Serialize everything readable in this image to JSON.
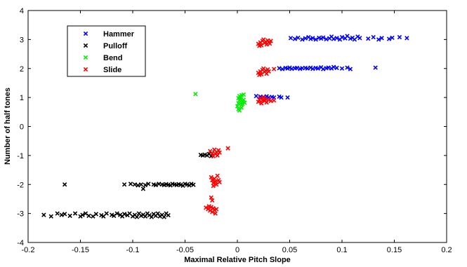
{
  "chart_data": {
    "type": "scatter",
    "title": "",
    "xlabel": "Maximal Relative Pitch Slope",
    "ylabel": "Number of half tones",
    "xlim": [
      -0.2,
      0.2
    ],
    "ylim": [
      -4,
      4
    ],
    "x_ticks": [
      "-0.2",
      "-0.15",
      "-0.1",
      "-0.05",
      "0",
      "0.05",
      "0.1",
      "0.15",
      "0.2"
    ],
    "y_ticks": [
      "4",
      "3",
      "2",
      "1",
      "0",
      "-1",
      "-2",
      "-3",
      "-4"
    ],
    "grid": false,
    "legend_placement": "top-left",
    "marker": "x",
    "series": [
      {
        "name": "Hammer",
        "color": "#0000ff",
        "points": [
          [
            0.051,
            3.05
          ],
          [
            0.055,
            3.02
          ],
          [
            0.058,
            3.06
          ],
          [
            0.062,
            3.0
          ],
          [
            0.065,
            3.04
          ],
          [
            0.068,
            3.08
          ],
          [
            0.07,
            3.02
          ],
          [
            0.072,
            3.05
          ],
          [
            0.075,
            3.0
          ],
          [
            0.078,
            3.06
          ],
          [
            0.08,
            3.03
          ],
          [
            0.082,
            3.07
          ],
          [
            0.085,
            3.01
          ],
          [
            0.088,
            3.04
          ],
          [
            0.09,
            3.1
          ],
          [
            0.092,
            3.02
          ],
          [
            0.095,
            3.05
          ],
          [
            0.098,
            3.0
          ],
          [
            0.1,
            3.08
          ],
          [
            0.103,
            3.04
          ],
          [
            0.105,
            3.12
          ],
          [
            0.108,
            3.03
          ],
          [
            0.11,
            3.06
          ],
          [
            0.112,
            3.0
          ],
          [
            0.115,
            3.1
          ],
          [
            0.117,
            3.05
          ],
          [
            0.125,
            3.03
          ],
          [
            0.13,
            3.08
          ],
          [
            0.135,
            3.0
          ],
          [
            0.138,
            3.05
          ],
          [
            0.145,
            3.02
          ],
          [
            0.148,
            3.06
          ],
          [
            0.155,
            3.08
          ],
          [
            0.162,
            3.05
          ],
          [
            0.04,
            2.01
          ],
          [
            0.043,
            1.98
          ],
          [
            0.046,
            2.02
          ],
          [
            0.048,
            2.0
          ],
          [
            0.05,
            2.03
          ],
          [
            0.052,
            1.99
          ],
          [
            0.055,
            2.01
          ],
          [
            0.057,
            2.02
          ],
          [
            0.06,
            1.99
          ],
          [
            0.062,
            2.01
          ],
          [
            0.065,
            2.02
          ],
          [
            0.067,
            2.0
          ],
          [
            0.07,
            2.03
          ],
          [
            0.072,
            1.99
          ],
          [
            0.075,
            2.02
          ],
          [
            0.077,
            2.0
          ],
          [
            0.08,
            2.04
          ],
          [
            0.082,
            1.98
          ],
          [
            0.085,
            2.01
          ],
          [
            0.087,
            2.03
          ],
          [
            0.09,
            2.0
          ],
          [
            0.092,
            2.05
          ],
          [
            0.095,
            2.02
          ],
          [
            0.1,
            2.0
          ],
          [
            0.105,
            2.03
          ],
          [
            0.108,
            1.98
          ],
          [
            0.132,
            2.03
          ],
          [
            0.018,
            1.05
          ],
          [
            0.022,
            1.03
          ],
          [
            0.025,
            1.02
          ],
          [
            0.028,
            1.04
          ],
          [
            0.03,
            1.0
          ],
          [
            0.033,
            1.02
          ],
          [
            0.035,
            1.0
          ],
          [
            0.04,
            1.03
          ],
          [
            0.042,
            1.0
          ],
          [
            0.048,
            1.0
          ]
        ]
      },
      {
        "name": "Pulloff",
        "color": "#000000",
        "points": [
          [
            -0.185,
            -3.05
          ],
          [
            -0.178,
            -3.1
          ],
          [
            -0.172,
            -3.0
          ],
          [
            -0.168,
            -3.05
          ],
          [
            -0.165,
            -3.02
          ],
          [
            -0.16,
            -3.08
          ],
          [
            -0.155,
            -3.0
          ],
          [
            -0.15,
            -3.1
          ],
          [
            -0.148,
            -3.05
          ],
          [
            -0.145,
            -3.0
          ],
          [
            -0.142,
            -3.08
          ],
          [
            -0.138,
            -3.1
          ],
          [
            -0.135,
            -3.02
          ],
          [
            -0.13,
            -3.06
          ],
          [
            -0.128,
            -3.1
          ],
          [
            -0.125,
            -3.0
          ],
          [
            -0.12,
            -3.05
          ],
          [
            -0.118,
            -3.08
          ],
          [
            -0.115,
            -3.0
          ],
          [
            -0.112,
            -3.05
          ],
          [
            -0.11,
            -3.1
          ],
          [
            -0.108,
            -3.02
          ],
          [
            -0.105,
            -3.06
          ],
          [
            -0.103,
            -3.0
          ],
          [
            -0.1,
            -3.1
          ],
          [
            -0.098,
            -3.05
          ],
          [
            -0.096,
            -3.12
          ],
          [
            -0.094,
            -3.0
          ],
          [
            -0.092,
            -3.08
          ],
          [
            -0.09,
            -3.04
          ],
          [
            -0.088,
            -3.1
          ],
          [
            -0.086,
            -3.0
          ],
          [
            -0.084,
            -3.06
          ],
          [
            -0.082,
            -3.12
          ],
          [
            -0.08,
            -3.02
          ],
          [
            -0.078,
            -3.08
          ],
          [
            -0.076,
            -3.0
          ],
          [
            -0.074,
            -3.1
          ],
          [
            -0.072,
            -3.05
          ],
          [
            -0.07,
            -3.12
          ],
          [
            -0.068,
            -3.0
          ],
          [
            -0.066,
            -3.06
          ],
          [
            -0.165,
            -2.0
          ],
          [
            -0.108,
            -2.0
          ],
          [
            -0.102,
            -1.98
          ],
          [
            -0.098,
            -2.0
          ],
          [
            -0.095,
            -2.03
          ],
          [
            -0.092,
            -2.0
          ],
          [
            -0.088,
            -2.02
          ],
          [
            -0.085,
            -1.98
          ],
          [
            -0.08,
            -2.0
          ],
          [
            -0.078,
            -2.02
          ],
          [
            -0.075,
            -1.98
          ],
          [
            -0.072,
            -2.0
          ],
          [
            -0.07,
            -2.02
          ],
          [
            -0.068,
            -1.99
          ],
          [
            -0.066,
            -2.01
          ],
          [
            -0.064,
            -2.03
          ],
          [
            -0.062,
            -1.98
          ],
          [
            -0.06,
            -2.0
          ],
          [
            -0.058,
            -2.02
          ],
          [
            -0.056,
            -1.99
          ],
          [
            -0.054,
            -2.01
          ],
          [
            -0.052,
            -2.04
          ],
          [
            -0.05,
            -1.98
          ],
          [
            -0.048,
            -2.0
          ],
          [
            -0.046,
            -2.03
          ],
          [
            -0.044,
            -1.98
          ],
          [
            -0.042,
            -2.01
          ],
          [
            -0.09,
            -2.15
          ],
          [
            -0.035,
            -0.98
          ],
          [
            -0.033,
            -1.0
          ],
          [
            -0.031,
            -0.97
          ],
          [
            -0.029,
            -1.0
          ],
          [
            -0.027,
            -0.95
          ],
          [
            -0.025,
            -1.02
          ]
        ]
      },
      {
        "name": "Bend",
        "color": "#00ee00",
        "points": [
          [
            -0.04,
            1.12
          ],
          [
            0.0,
            0.7
          ],
          [
            0.001,
            0.8
          ],
          [
            0.002,
            0.9
          ],
          [
            0.001,
            0.6
          ],
          [
            0.003,
            1.0
          ],
          [
            0.004,
            0.75
          ],
          [
            0.002,
            1.05
          ],
          [
            0.005,
            0.85
          ],
          [
            0.003,
            0.95
          ],
          [
            0.006,
            1.1
          ],
          [
            0.004,
            0.65
          ],
          [
            0.005,
            0.78
          ],
          [
            0.002,
            0.55
          ],
          [
            0.006,
            0.92
          ],
          [
            0.001,
            0.98
          ],
          [
            0.004,
            1.08
          ],
          [
            0.007,
            0.82
          ]
        ]
      },
      {
        "name": "Slide",
        "color": "#ff0000",
        "points": [
          [
            0.02,
            2.85
          ],
          [
            0.022,
            2.9
          ],
          [
            0.024,
            2.95
          ],
          [
            0.023,
            2.8
          ],
          [
            0.025,
            3.0
          ],
          [
            0.026,
            2.88
          ],
          [
            0.027,
            2.92
          ],
          [
            0.028,
            2.83
          ],
          [
            0.029,
            2.97
          ],
          [
            0.03,
            2.9
          ],
          [
            0.031,
            2.86
          ],
          [
            0.032,
            2.95
          ],
          [
            0.021,
            2.78
          ],
          [
            0.02,
            1.85
          ],
          [
            0.022,
            1.9
          ],
          [
            0.023,
            1.8
          ],
          [
            0.024,
            1.95
          ],
          [
            0.025,
            2.0
          ],
          [
            0.026,
            1.88
          ],
          [
            0.027,
            1.93
          ],
          [
            0.028,
            1.82
          ],
          [
            0.029,
            1.97
          ],
          [
            0.03,
            1.9
          ],
          [
            0.035,
            1.98
          ],
          [
            0.021,
            1.78
          ],
          [
            0.02,
            0.85
          ],
          [
            0.021,
            0.92
          ],
          [
            0.022,
            0.98
          ],
          [
            0.023,
            0.8
          ],
          [
            0.024,
            0.9
          ],
          [
            0.025,
            1.0
          ],
          [
            0.026,
            0.88
          ],
          [
            0.027,
            0.95
          ],
          [
            0.028,
            0.83
          ],
          [
            0.03,
            0.92
          ],
          [
            0.032,
            0.88
          ],
          [
            0.035,
            0.9
          ],
          [
            -0.026,
            -0.85
          ],
          [
            -0.024,
            -0.92
          ],
          [
            -0.022,
            -0.8
          ],
          [
            -0.021,
            -0.95
          ],
          [
            -0.02,
            -0.88
          ],
          [
            -0.019,
            -1.0
          ],
          [
            -0.018,
            -0.82
          ],
          [
            -0.017,
            -0.9
          ],
          [
            -0.023,
            -1.02
          ],
          [
            -0.009,
            -0.75
          ],
          [
            -0.025,
            -1.75
          ],
          [
            -0.024,
            -1.85
          ],
          [
            -0.023,
            -1.95
          ],
          [
            -0.022,
            -1.8
          ],
          [
            -0.021,
            -1.9
          ],
          [
            -0.02,
            -2.0
          ],
          [
            -0.019,
            -1.7
          ],
          [
            -0.018,
            -1.85
          ],
          [
            -0.017,
            -1.92
          ],
          [
            -0.023,
            -2.05
          ],
          [
            -0.03,
            -2.8
          ],
          [
            -0.028,
            -2.85
          ],
          [
            -0.026,
            -2.9
          ],
          [
            -0.025,
            -2.78
          ],
          [
            -0.024,
            -2.95
          ],
          [
            -0.023,
            -2.82
          ],
          [
            -0.022,
            -2.88
          ],
          [
            -0.021,
            -3.0
          ],
          [
            -0.02,
            -2.85
          ],
          [
            -0.027,
            -2.75
          ],
          [
            -0.025,
            -2.45
          ],
          [
            -0.024,
            -2.55
          ]
        ]
      }
    ]
  }
}
